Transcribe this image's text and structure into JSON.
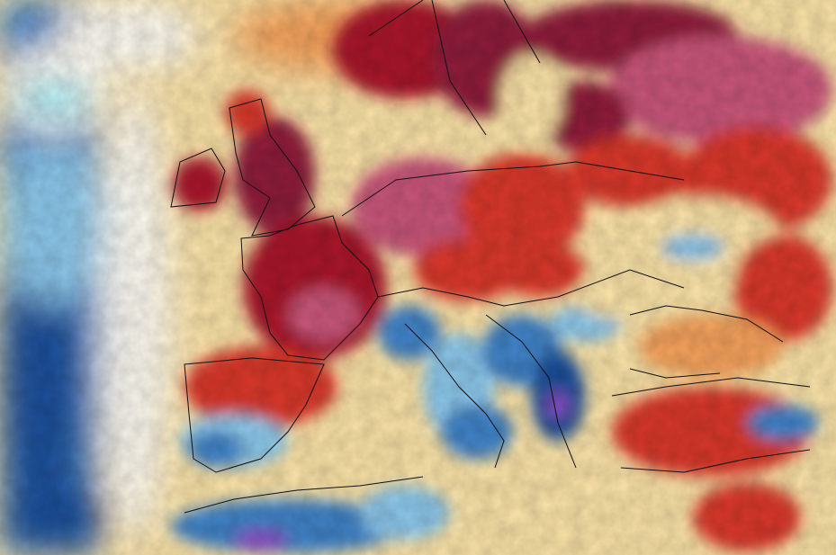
{
  "map": {
    "palette": {
      "deep_blue": "#1f4f9a",
      "blue": "#3f83c8",
      "light_blue": "#8cc7ea",
      "cyan": "#7fe3f0",
      "white": "#fdfaf2",
      "pale_yellow": "#fbe3a8",
      "orange": "#f5a25c",
      "red": "#d9382b",
      "dark_red": "#a8182a",
      "maroon": "#8e1f3a",
      "pink": "#c9567a",
      "purple": "#8a4fc8",
      "border": "#111111"
    }
  }
}
